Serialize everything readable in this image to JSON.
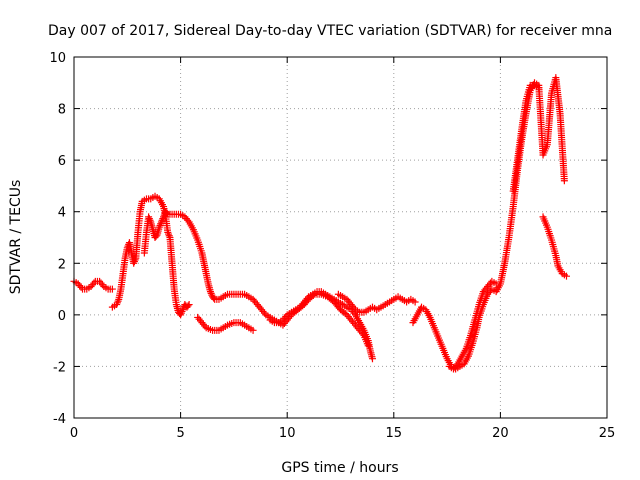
{
  "chart_data": {
    "type": "scatter",
    "title": "Day 007 of 2017, Sidereal Day-to-day VTEC variation (SDTVAR) for receiver mna",
    "xlabel": "GPS time / hours",
    "ylabel": "SDTVAR / TECUs",
    "xlim": [
      0,
      25
    ],
    "ylim": [
      -4,
      10
    ],
    "xticks": [
      "0",
      "5",
      "10",
      "15",
      "20",
      "25"
    ],
    "yticks": [
      "-4",
      "-2",
      "0",
      "2",
      "4",
      "6",
      "8",
      "10"
    ],
    "grid": true,
    "marker": "plus",
    "color": "#ff0000",
    "segments": [
      [
        [
          0.0,
          1.3
        ],
        [
          0.2,
          1.2
        ],
        [
          0.4,
          1.0
        ],
        [
          0.6,
          1.0
        ],
        [
          0.8,
          1.1
        ],
        [
          1.0,
          1.3
        ],
        [
          1.2,
          1.3
        ],
        [
          1.4,
          1.1
        ],
        [
          1.6,
          1.0
        ],
        [
          1.8,
          1.0
        ]
      ],
      [
        [
          1.8,
          0.3
        ],
        [
          2.0,
          0.4
        ],
        [
          2.1,
          0.6
        ],
        [
          2.2,
          1.0
        ],
        [
          2.3,
          1.6
        ],
        [
          2.4,
          2.2
        ],
        [
          2.5,
          2.6
        ],
        [
          2.6,
          2.8
        ],
        [
          2.7,
          2.4
        ],
        [
          2.8,
          2.0
        ],
        [
          2.9,
          2.2
        ],
        [
          3.0,
          3.2
        ],
        [
          3.1,
          4.0
        ],
        [
          3.2,
          4.4
        ],
        [
          3.4,
          4.5
        ],
        [
          3.6,
          4.5
        ],
        [
          3.8,
          4.6
        ],
        [
          4.0,
          4.5
        ],
        [
          4.2,
          4.2
        ],
        [
          4.3,
          3.8
        ],
        [
          4.4,
          3.2
        ],
        [
          4.5,
          3.0
        ],
        [
          4.6,
          2.0
        ],
        [
          4.7,
          1.0
        ],
        [
          4.8,
          0.4
        ],
        [
          4.9,
          0.1
        ],
        [
          5.0,
          0.0
        ],
        [
          5.1,
          0.2
        ],
        [
          5.2,
          0.4
        ],
        [
          5.3,
          0.3
        ],
        [
          5.4,
          0.4
        ]
      ],
      [
        [
          3.3,
          2.4
        ],
        [
          3.4,
          3.2
        ],
        [
          3.5,
          3.8
        ],
        [
          3.6,
          3.6
        ],
        [
          3.7,
          3.3
        ],
        [
          3.8,
          3.0
        ],
        [
          3.9,
          3.1
        ],
        [
          4.0,
          3.4
        ],
        [
          4.1,
          3.6
        ],
        [
          4.2,
          3.8
        ],
        [
          4.3,
          4.0
        ],
        [
          4.4,
          3.9
        ],
        [
          4.6,
          3.9
        ],
        [
          4.8,
          3.9
        ],
        [
          5.0,
          3.9
        ],
        [
          5.2,
          3.8
        ],
        [
          5.4,
          3.6
        ],
        [
          5.6,
          3.3
        ],
        [
          5.8,
          2.9
        ],
        [
          6.0,
          2.4
        ],
        [
          6.1,
          2.0
        ],
        [
          6.2,
          1.6
        ],
        [
          6.3,
          1.2
        ],
        [
          6.4,
          0.9
        ],
        [
          6.5,
          0.7
        ],
        [
          6.6,
          0.6
        ],
        [
          6.8,
          0.6
        ],
        [
          7.0,
          0.7
        ],
        [
          7.2,
          0.8
        ],
        [
          7.4,
          0.8
        ],
        [
          7.6,
          0.8
        ],
        [
          7.8,
          0.8
        ],
        [
          8.0,
          0.8
        ],
        [
          8.2,
          0.7
        ],
        [
          8.4,
          0.6
        ],
        [
          8.6,
          0.4
        ],
        [
          8.8,
          0.2
        ],
        [
          9.0,
          0.0
        ],
        [
          9.2,
          -0.1
        ],
        [
          9.4,
          -0.2
        ],
        [
          9.6,
          -0.3
        ],
        [
          9.8,
          -0.2
        ],
        [
          10.0,
          0.0
        ],
        [
          10.2,
          0.1
        ],
        [
          10.4,
          0.2
        ],
        [
          10.6,
          0.3
        ],
        [
          10.8,
          0.5
        ],
        [
          11.0,
          0.7
        ],
        [
          11.2,
          0.8
        ],
        [
          11.4,
          0.9
        ],
        [
          11.6,
          0.9
        ],
        [
          11.8,
          0.8
        ],
        [
          12.0,
          0.7
        ],
        [
          12.2,
          0.6
        ],
        [
          12.4,
          0.5
        ],
        [
          12.6,
          0.4
        ],
        [
          12.8,
          0.3
        ],
        [
          13.0,
          0.2
        ],
        [
          13.2,
          0.0
        ],
        [
          13.4,
          -0.3
        ],
        [
          13.6,
          -0.6
        ],
        [
          13.8,
          -1.0
        ],
        [
          13.9,
          -1.4
        ],
        [
          14.0,
          -1.7
        ]
      ],
      [
        [
          5.8,
          -0.1
        ],
        [
          6.0,
          -0.3
        ],
        [
          6.2,
          -0.5
        ],
        [
          6.5,
          -0.6
        ],
        [
          6.8,
          -0.6
        ],
        [
          7.0,
          -0.5
        ],
        [
          7.2,
          -0.4
        ],
        [
          7.5,
          -0.3
        ],
        [
          7.8,
          -0.3
        ],
        [
          8.0,
          -0.4
        ],
        [
          8.2,
          -0.5
        ],
        [
          8.4,
          -0.6
        ]
      ],
      [
        [
          9.2,
          -0.2
        ],
        [
          9.4,
          -0.3
        ],
        [
          9.6,
          -0.3
        ],
        [
          9.8,
          -0.4
        ],
        [
          10.0,
          -0.2
        ],
        [
          10.2,
          0.0
        ],
        [
          10.5,
          0.2
        ],
        [
          10.8,
          0.4
        ],
        [
          11.0,
          0.6
        ],
        [
          11.3,
          0.8
        ],
        [
          11.6,
          0.8
        ],
        [
          11.9,
          0.7
        ],
        [
          12.2,
          0.5
        ],
        [
          12.5,
          0.2
        ],
        [
          12.8,
          0.0
        ],
        [
          13.0,
          -0.2
        ],
        [
          13.2,
          -0.4
        ],
        [
          13.4,
          -0.6
        ],
        [
          13.6,
          -0.8
        ],
        [
          13.8,
          -1.2
        ]
      ],
      [
        [
          12.4,
          0.8
        ],
        [
          12.6,
          0.7
        ],
        [
          12.8,
          0.6
        ],
        [
          13.0,
          0.4
        ],
        [
          13.2,
          0.2
        ],
        [
          13.4,
          0.1
        ],
        [
          13.6,
          0.1
        ],
        [
          13.8,
          0.2
        ],
        [
          14.0,
          0.3
        ],
        [
          14.2,
          0.2
        ],
        [
          14.4,
          0.3
        ],
        [
          14.6,
          0.4
        ],
        [
          14.8,
          0.5
        ],
        [
          15.0,
          0.6
        ],
        [
          15.2,
          0.7
        ],
        [
          15.4,
          0.6
        ],
        [
          15.6,
          0.5
        ],
        [
          15.8,
          0.6
        ],
        [
          16.0,
          0.5
        ]
      ],
      [
        [
          15.9,
          -0.3
        ],
        [
          16.1,
          0.0
        ],
        [
          16.3,
          0.3
        ],
        [
          16.5,
          0.2
        ],
        [
          16.7,
          -0.1
        ],
        [
          16.9,
          -0.5
        ],
        [
          17.1,
          -0.9
        ],
        [
          17.3,
          -1.3
        ],
        [
          17.5,
          -1.7
        ],
        [
          17.7,
          -2.0
        ],
        [
          17.9,
          -2.1
        ],
        [
          18.1,
          -2.0
        ],
        [
          18.3,
          -1.9
        ],
        [
          18.5,
          -1.6
        ],
        [
          18.7,
          -1.1
        ],
        [
          18.9,
          -0.5
        ],
        [
          19.0,
          -0.1
        ],
        [
          19.2,
          0.4
        ],
        [
          19.4,
          0.8
        ],
        [
          19.6,
          1.0
        ],
        [
          19.8,
          0.9
        ],
        [
          20.0,
          1.2
        ],
        [
          20.2,
          2.0
        ],
        [
          20.4,
          3.0
        ],
        [
          20.6,
          4.2
        ],
        [
          20.8,
          5.6
        ],
        [
          21.0,
          6.8
        ],
        [
          21.2,
          7.8
        ],
        [
          21.4,
          8.7
        ],
        [
          21.6,
          9.0
        ],
        [
          21.8,
          8.9
        ],
        [
          22.0,
          6.2
        ],
        [
          22.2,
          6.6
        ],
        [
          22.4,
          8.6
        ],
        [
          22.6,
          9.2
        ],
        [
          22.8,
          7.8
        ],
        [
          23.0,
          5.2
        ]
      ],
      [
        [
          17.6,
          -2.0
        ],
        [
          17.8,
          -2.1
        ],
        [
          18.0,
          -1.9
        ],
        [
          18.2,
          -1.6
        ],
        [
          18.4,
          -1.3
        ],
        [
          18.6,
          -0.8
        ],
        [
          18.8,
          -0.2
        ],
        [
          19.0,
          0.4
        ],
        [
          19.2,
          0.9
        ],
        [
          19.4,
          1.1
        ],
        [
          19.6,
          1.3
        ],
        [
          19.8,
          1.2
        ]
      ],
      [
        [
          20.6,
          4.8
        ],
        [
          20.8,
          6.0
        ],
        [
          21.0,
          7.2
        ],
        [
          21.2,
          8.3
        ],
        [
          21.4,
          8.9
        ],
        [
          21.6,
          8.9
        ],
        [
          21.8,
          8.8
        ]
      ],
      [
        [
          22.0,
          3.8
        ],
        [
          22.2,
          3.4
        ],
        [
          22.4,
          2.9
        ],
        [
          22.6,
          2.3
        ],
        [
          22.7,
          1.9
        ],
        [
          22.9,
          1.6
        ],
        [
          23.1,
          1.5
        ]
      ]
    ]
  }
}
